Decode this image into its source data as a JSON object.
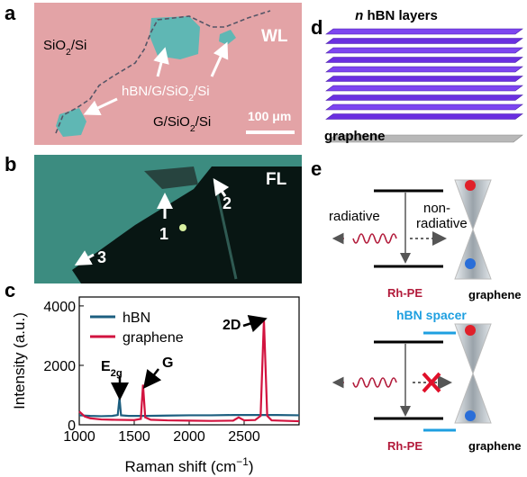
{
  "panel_labels": [
    "a",
    "b",
    "c",
    "d",
    "e"
  ],
  "panel_a": {
    "substrate": [
      "SiO",
      "2",
      "/Si"
    ],
    "heterostructure": [
      "hBN/G/SiO",
      "2",
      "/Si"
    ],
    "graphene_region": [
      "G/SiO",
      "2",
      "/Si"
    ],
    "mode": "WL",
    "scale_bar": "100 μm"
  },
  "panel_b": {
    "mode": "FL",
    "markers": [
      "1",
      "2",
      "3"
    ]
  },
  "chart_data": {
    "type": "line",
    "x_label": [
      "Raman shift (cm",
      "−1",
      ")"
    ],
    "y_label": "Intensity (a.u.)",
    "xlim": [
      1000,
      3000
    ],
    "ylim": [
      0,
      4300
    ],
    "xticks": [
      1000,
      1500,
      2000,
      2500
    ],
    "yticks": [
      0,
      2000,
      4000
    ],
    "series": [
      {
        "name": "hBN",
        "color": "#1d5f80",
        "x": [
          1000,
          1100,
          1200,
          1300,
          1350,
          1366,
          1380,
          1450,
          1600,
          1800,
          2000,
          2200,
          2400,
          2600,
          2800,
          3000
        ],
        "values": [
          320,
          300,
          290,
          300,
          330,
          900,
          320,
          300,
          300,
          310,
          320,
          320,
          330,
          330,
          330,
          320
        ]
      },
      {
        "name": "graphene",
        "color": "#d2133f",
        "x": [
          1000,
          1050,
          1100,
          1200,
          1300,
          1500,
          1560,
          1580,
          1600,
          1650,
          1800,
          2000,
          2200,
          2400,
          2450,
          2500,
          2600,
          2650,
          2680,
          2710,
          2750,
          2900,
          3000
        ],
        "values": [
          450,
          280,
          220,
          180,
          170,
          160,
          200,
          1350,
          250,
          170,
          150,
          140,
          130,
          140,
          250,
          150,
          160,
          300,
          3550,
          300,
          150,
          130,
          120
        ]
      }
    ],
    "annotations": [
      [
        "E",
        "2g"
      ],
      [
        "G"
      ],
      [
        "2D"
      ]
    ]
  },
  "panel_d": {
    "title": [
      "n",
      " hBN layers"
    ],
    "bottom_label": "graphene"
  },
  "panel_e": {
    "top": {
      "radiative": "radiative",
      "nonradiative": [
        "non-",
        "radiative"
      ],
      "emitter": "Rh-PE",
      "acceptor": "graphene"
    },
    "bottom": {
      "spacer": "hBN spacer",
      "emitter": "Rh-PE",
      "acceptor": "graphene"
    }
  }
}
